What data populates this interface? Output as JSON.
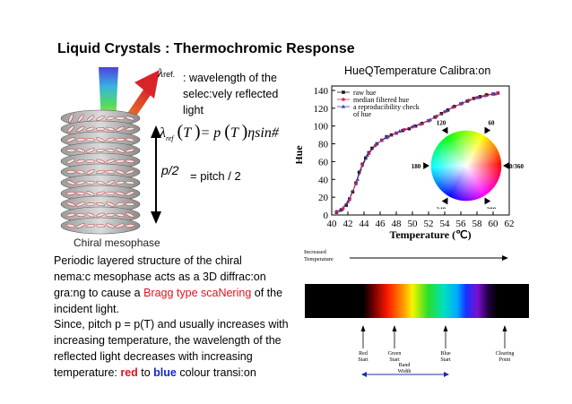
{
  "title": "Liquid Crystals : Thermochromic Response",
  "lambda_ref_label": "λref.",
  "wavelength_desc": [
    ": wavelength of the",
    "selec:vely reflected",
    "light"
  ],
  "formula": "λref (T )= p (T )ηsin#",
  "p2_label": "p/2",
  "pitch_eq": "= pitch / 2",
  "mesophase_caption": "Chiral mesophase",
  "para1": {
    "line1": "Periodic layered structure of the chiral",
    "line2": "nema:c mesophase acts as a 3D diffrac:on",
    "line3_pre": "gra:ng to cause a ",
    "line3_red": "Bragg type scaNering",
    "line3_post": " of the",
    "line4": "incident light."
  },
  "para2": {
    "line1": "Since, pitch p = p(T) and usually increases with",
    "line2": "increasing temperature, the wavelength of the",
    "line3": "reflected light decreases with increasing",
    "line4_pre": "temperature: ",
    "line4_red": "red",
    "line4_mid": " to ",
    "line4_blue": "blue",
    "line4_post": " colour transi:on"
  },
  "chart_data": {
    "type": "scatter",
    "title": "HueQTemperature Calibra:on",
    "xlabel": "Temperature (℃)",
    "ylabel": "Hue",
    "xlim": [
      40,
      62
    ],
    "ylim": [
      0,
      145
    ],
    "xticks": [
      "40",
      "42",
      "44",
      "46",
      "48",
      "50",
      "52",
      "54",
      "56",
      "58",
      "60",
      "62"
    ],
    "yticks": [
      "0",
      "20",
      "40",
      "60",
      "80",
      "100",
      "120",
      "140"
    ],
    "legend_position": "top-left",
    "series": [
      {
        "name": "raw hue",
        "marker": "square",
        "color": "#1a1a1a",
        "x": [
          40.6,
          41.2,
          41.8,
          42.2,
          42.6,
          43.0,
          43.4,
          43.8,
          44.2,
          44.6,
          45.0,
          45.6,
          46.2,
          46.8,
          47.4,
          48.0,
          48.8,
          49.6,
          50.4,
          51.2,
          52.0,
          52.8,
          53.6,
          54.4,
          55.2,
          56.0,
          56.8,
          57.6,
          58.4,
          59.2,
          60.0,
          60.6
        ],
        "y": [
          3,
          6,
          11,
          18,
          26,
          36,
          48,
          57,
          64,
          70,
          75,
          80,
          84,
          88,
          90,
          92,
          95,
          97,
          100,
          103,
          106,
          110,
          114,
          118,
          122,
          125,
          128,
          131,
          133,
          135,
          136,
          137
        ]
      },
      {
        "name": "median filtered hue",
        "marker": "circle",
        "color": "#d81b60",
        "x": [
          40.6,
          41.4,
          42.2,
          43.0,
          43.8,
          44.6,
          45.4,
          46.2,
          47.0,
          48.0,
          49.0,
          50.0,
          51.0,
          52.0,
          53.0,
          54.0,
          55.0,
          56.0,
          57.0,
          58.0,
          59.0,
          60.0,
          60.6
        ],
        "y": [
          4,
          7,
          17,
          35,
          56,
          69,
          78,
          84,
          88,
          92,
          96,
          99,
          102,
          106,
          111,
          116,
          121,
          125,
          129,
          132,
          134,
          136,
          137
        ]
      },
      {
        "name": "a reproducibility check of hue",
        "marker": "triangle",
        "color": "#3949ab",
        "x": [
          41.0,
          42.0,
          43.2,
          44.4,
          45.6,
          46.8,
          48.4,
          50.2,
          52.2,
          54.2,
          56.2,
          58.2,
          60.2
        ],
        "y": [
          5,
          15,
          40,
          67,
          80,
          87,
          94,
          100,
          107,
          117,
          126,
          132,
          136
        ]
      }
    ]
  },
  "hue_wheel": {
    "labels": [
      "60",
      "120",
      "180",
      "240",
      "300",
      "0/360"
    ]
  },
  "spectrum": {
    "increased_temp_label": [
      "Increased",
      "Temperature"
    ],
    "labels": [
      {
        "lines": [
          "Red",
          "Start"
        ]
      },
      {
        "lines": [
          "Green",
          "Start"
        ]
      },
      {
        "lines": [
          "Blue",
          "Start"
        ]
      },
      {
        "lines": [
          "Clearing",
          "Point"
        ]
      }
    ],
    "band_width": [
      "Band",
      "Width"
    ]
  }
}
